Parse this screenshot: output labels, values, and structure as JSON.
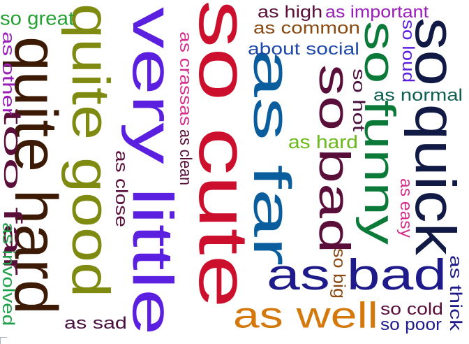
{
  "word_cloud": {
    "words": [
      {
        "text": "so cute",
        "color": "#cc0f2c"
      },
      {
        "text": "very little",
        "color": "#5b1fe0"
      },
      {
        "text": "quite good",
        "color": "#7e8a10"
      },
      {
        "text": "quite hard",
        "color": "#3c1a06"
      },
      {
        "text": "as far",
        "color": "#0a5e9e"
      },
      {
        "text": "so bad",
        "color": "#5a0f3a"
      },
      {
        "text": "so funny",
        "color": "#0b7a38"
      },
      {
        "text": "so quick",
        "color": "#101a45"
      },
      {
        "text": "as bad",
        "color": "#1f1a8a"
      },
      {
        "text": "too far",
        "color": "#5a0f3a"
      },
      {
        "text": "as well",
        "color": "#d4780c"
      },
      {
        "text": "so great",
        "color": "#26a032"
      },
      {
        "text": "as high",
        "color": "#5a0f3a"
      },
      {
        "text": "as important",
        "color": "#9a1fb8"
      },
      {
        "text": "as common",
        "color": "#8a4a14"
      },
      {
        "text": "about social",
        "color": "#1f4aa8"
      },
      {
        "text": "as normal",
        "color": "#0f5e52"
      },
      {
        "text": "as hard",
        "color": "#6ab81a"
      },
      {
        "text": "as sad",
        "color": "#4a1040"
      },
      {
        "text": "so cold",
        "color": "#5a0f3a"
      },
      {
        "text": "so poor",
        "color": "#1f1a8a"
      },
      {
        "text": "as other",
        "color": "#9a1fb8"
      },
      {
        "text": "as crassas",
        "color": "#d42e8a"
      },
      {
        "text": "as clean",
        "color": "#5a0f3a"
      },
      {
        "text": "as close",
        "color": "#5a0f3a"
      },
      {
        "text": "as involved",
        "color": "#1fa04a"
      },
      {
        "text": "so hot",
        "color": "#4a1040"
      },
      {
        "text": "so big",
        "color": "#8a4a14"
      },
      {
        "text": "so loud",
        "color": "#5b1fe0"
      },
      {
        "text": "as easy",
        "color": "#d42e8a"
      },
      {
        "text": "as thick",
        "color": "#1f1a8a"
      }
    ]
  }
}
